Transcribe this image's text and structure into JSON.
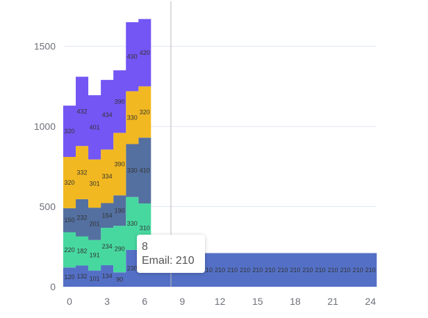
{
  "chart_data": {
    "type": "area",
    "step": true,
    "x": [
      0,
      1,
      2,
      3,
      4,
      5,
      6,
      7,
      8,
      9,
      10,
      11,
      12,
      13,
      14,
      15,
      16,
      17,
      18,
      19,
      20,
      21,
      22,
      23,
      24
    ],
    "xticks": [
      0,
      3,
      6,
      9,
      12,
      15,
      18,
      21,
      24
    ],
    "ylim": [
      0,
      1700
    ],
    "yticks": [
      0,
      500,
      1000,
      1500
    ],
    "grid": true,
    "crosshair_x": 8,
    "series": [
      {
        "name": "Email",
        "color": "#5470c6",
        "values": [
          120,
          132,
          101,
          134,
          90,
          230,
          210,
          210,
          210,
          210,
          210,
          210,
          210,
          210,
          210,
          210,
          210,
          210,
          210,
          210,
          210,
          210,
          210,
          210,
          210
        ]
      },
      {
        "name": "",
        "color": "#47d8a0",
        "values": [
          220,
          182,
          191,
          234,
          290,
          330,
          310,
          null,
          null,
          null,
          null,
          null,
          null,
          null,
          null,
          null,
          null,
          null,
          null,
          null,
          null,
          null,
          null,
          null,
          null
        ]
      },
      {
        "name": "",
        "color": "#5470a0",
        "values": [
          150,
          232,
          201,
          154,
          190,
          330,
          410,
          null,
          null,
          null,
          null,
          null,
          null,
          null,
          null,
          null,
          null,
          null,
          null,
          null,
          null,
          null,
          null,
          null,
          null
        ]
      },
      {
        "name": "",
        "color": "#f2b821",
        "values": [
          320,
          332,
          301,
          334,
          390,
          330,
          320,
          null,
          null,
          null,
          null,
          null,
          null,
          null,
          null,
          null,
          null,
          null,
          null,
          null,
          null,
          null,
          null,
          null,
          null
        ]
      },
      {
        "name": "",
        "color": "#7456f4",
        "values": [
          320,
          432,
          401,
          434,
          390,
          430,
          420,
          null,
          null,
          null,
          null,
          null,
          null,
          null,
          null,
          null,
          null,
          null,
          null,
          null,
          null,
          null,
          null,
          null,
          null
        ]
      }
    ]
  },
  "tooltip": {
    "x_label": "8",
    "line": "Email: 210"
  }
}
